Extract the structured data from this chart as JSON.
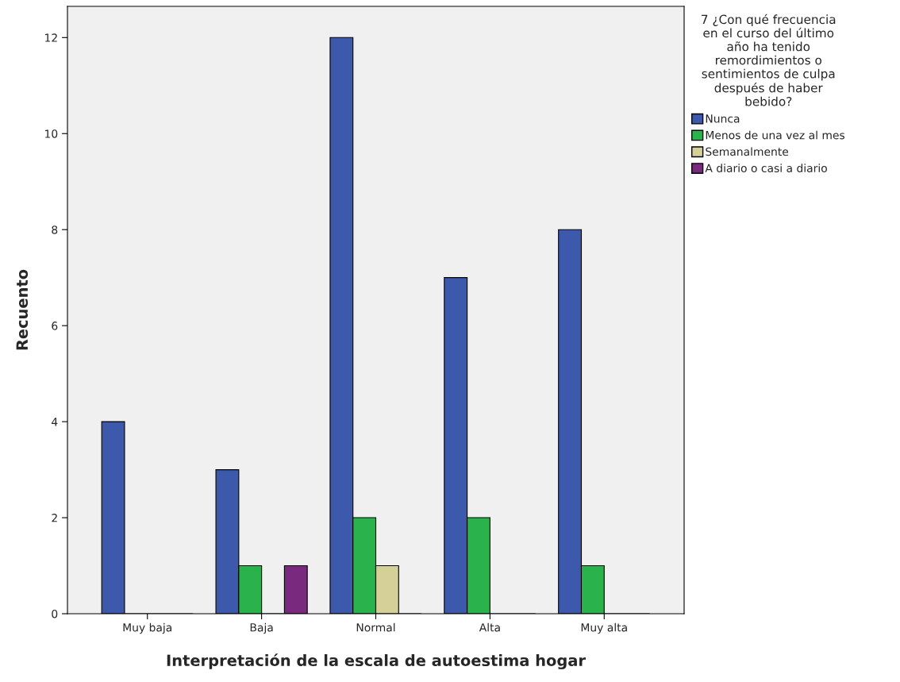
{
  "chart_data": {
    "type": "bar",
    "xlabel": "Interpretación de la escala de autoestima hogar",
    "ylabel": "Recuento",
    "legend_title": "7 ¿Con qué frecuencia en el curso del último año ha tenido remordimientos o sentimientos de culpa después de haber bebido?",
    "categories": [
      "Muy baja",
      "Baja",
      "Normal",
      "Alta",
      "Muy alta"
    ],
    "series": [
      {
        "name": "Nunca",
        "color": "#3d59ab",
        "values": [
          4,
          3,
          12,
          7,
          8
        ]
      },
      {
        "name": "Menos de una vez al mes",
        "color": "#2ab34c",
        "values": [
          0,
          1,
          2,
          2,
          1
        ]
      },
      {
        "name": "Semanalmente",
        "color": "#d5cf98",
        "values": [
          0,
          0,
          1,
          0,
          0
        ]
      },
      {
        "name": "A diario o casi a diario",
        "color": "#7a2a7e",
        "values": [
          0,
          1,
          0,
          0,
          0
        ]
      }
    ],
    "ylim": [
      0,
      12.65
    ],
    "yticks": [
      0,
      2,
      4,
      6,
      8,
      10,
      12
    ],
    "grid": false,
    "legend": "right"
  }
}
